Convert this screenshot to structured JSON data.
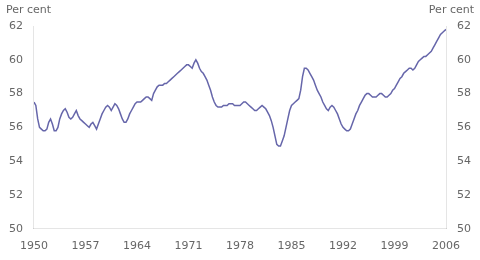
{
  "chart_data": {
    "type": "line",
    "ylabel": "Per cent",
    "y2label": "Per cent",
    "color": "#6666aa",
    "grid": false,
    "xlim": [
      1950,
      2006
    ],
    "xticks": [
      1950,
      1957,
      1964,
      1971,
      1978,
      1985,
      1992,
      1999,
      2006
    ],
    "ylim": [
      50,
      62
    ],
    "yticks": [
      50,
      52,
      54,
      56,
      58,
      60,
      62
    ],
    "y2lim": [
      50,
      62
    ],
    "y2ticks": [
      50,
      52,
      54,
      56,
      58,
      60,
      62
    ],
    "x": [
      1950.0,
      1950.25,
      1950.5,
      1950.75,
      1951.0,
      1951.25,
      1951.5,
      1951.75,
      1952.0,
      1952.25,
      1952.5,
      1952.75,
      1953.0,
      1953.25,
      1953.5,
      1953.75,
      1954.0,
      1954.25,
      1954.5,
      1954.75,
      1955.0,
      1955.25,
      1955.5,
      1955.75,
      1956.0,
      1956.25,
      1956.5,
      1956.75,
      1957.0,
      1957.25,
      1957.5,
      1957.75,
      1958.0,
      1958.25,
      1958.5,
      1958.75,
      1959.0,
      1959.25,
      1959.5,
      1959.75,
      1960.0,
      1960.25,
      1960.5,
      1960.75,
      1961.0,
      1961.25,
      1961.5,
      1961.75,
      1962.0,
      1962.25,
      1962.5,
      1962.75,
      1963.0,
      1963.25,
      1963.5,
      1963.75,
      1964.0,
      1964.25,
      1964.5,
      1964.75,
      1965.0,
      1965.25,
      1965.5,
      1965.75,
      1966.0,
      1966.25,
      1966.5,
      1966.75,
      1967.0,
      1967.25,
      1967.5,
      1967.75,
      1968.0,
      1968.25,
      1968.5,
      1968.75,
      1969.0,
      1969.25,
      1969.5,
      1969.75,
      1970.0,
      1970.25,
      1970.5,
      1970.75,
      1971.0,
      1971.25,
      1971.5,
      1971.75,
      1972.0,
      1972.25,
      1972.5,
      1972.75,
      1973.0,
      1973.25,
      1973.5,
      1973.75,
      1974.0,
      1974.25,
      1974.5,
      1974.75,
      1975.0,
      1975.25,
      1975.5,
      1975.75,
      1976.0,
      1976.25,
      1976.5,
      1976.75,
      1977.0,
      1977.25,
      1977.5,
      1977.75,
      1978.0,
      1978.25,
      1978.5,
      1978.75,
      1979.0,
      1979.25,
      1979.5,
      1979.75,
      1980.0,
      1980.25,
      1980.5,
      1980.75,
      1981.0,
      1981.25,
      1981.5,
      1981.75,
      1982.0,
      1982.25,
      1982.5,
      1982.75,
      1983.0,
      1983.25,
      1983.5,
      1983.75,
      1984.0,
      1984.25,
      1984.5,
      1984.75,
      1985.0,
      1985.25,
      1985.5,
      1985.75,
      1986.0,
      1986.25,
      1986.5,
      1986.75,
      1987.0,
      1987.25,
      1987.5,
      1987.75,
      1988.0,
      1988.25,
      1988.5,
      1988.75,
      1989.0,
      1989.25,
      1989.5,
      1989.75,
      1990.0,
      1990.25,
      1990.5,
      1990.75,
      1991.0,
      1991.25,
      1991.5,
      1991.75,
      1992.0,
      1992.25,
      1992.5,
      1992.75,
      1993.0,
      1993.25,
      1993.5,
      1993.75,
      1994.0,
      1994.25,
      1994.5,
      1994.75,
      1995.0,
      1995.25,
      1995.5,
      1995.75,
      1996.0,
      1996.25,
      1996.5,
      1996.75,
      1997.0,
      1997.25,
      1997.5,
      1997.75,
      1998.0,
      1998.25,
      1998.5,
      1998.75,
      1999.0,
      1999.25,
      1999.5,
      1999.75,
      2000.0,
      2000.25,
      2000.5,
      2000.75,
      2001.0,
      2001.25,
      2001.5,
      2001.75,
      2002.0,
      2002.25,
      2002.5,
      2002.75,
      2003.0,
      2003.25,
      2003.5,
      2003.75,
      2004.0,
      2004.25,
      2004.5,
      2004.75,
      2005.0,
      2005.25,
      2005.5,
      2005.75,
      2006.0
    ],
    "values": [
      57.5,
      57.3,
      56.5,
      56.0,
      55.9,
      55.8,
      55.8,
      55.9,
      56.3,
      56.5,
      56.2,
      55.8,
      55.8,
      56.0,
      56.5,
      56.8,
      57.0,
      57.1,
      56.9,
      56.6,
      56.5,
      56.6,
      56.8,
      57.0,
      56.7,
      56.5,
      56.4,
      56.3,
      56.2,
      56.1,
      56.0,
      56.2,
      56.3,
      56.1,
      55.9,
      56.2,
      56.5,
      56.8,
      57.0,
      57.2,
      57.3,
      57.2,
      57.0,
      57.2,
      57.4,
      57.3,
      57.1,
      56.8,
      56.5,
      56.3,
      56.3,
      56.5,
      56.8,
      57.0,
      57.2,
      57.4,
      57.5,
      57.5,
      57.5,
      57.6,
      57.7,
      57.8,
      57.8,
      57.7,
      57.6,
      58.0,
      58.2,
      58.4,
      58.5,
      58.5,
      58.5,
      58.6,
      58.6,
      58.7,
      58.8,
      58.9,
      59.0,
      59.1,
      59.2,
      59.3,
      59.4,
      59.5,
      59.6,
      59.7,
      59.7,
      59.6,
      59.5,
      59.8,
      60.0,
      59.8,
      59.5,
      59.3,
      59.2,
      59.0,
      58.8,
      58.5,
      58.2,
      57.8,
      57.5,
      57.3,
      57.2,
      57.2,
      57.2,
      57.3,
      57.3,
      57.3,
      57.4,
      57.4,
      57.4,
      57.3,
      57.3,
      57.3,
      57.3,
      57.4,
      57.5,
      57.5,
      57.4,
      57.3,
      57.2,
      57.1,
      57.0,
      57.0,
      57.1,
      57.2,
      57.3,
      57.2,
      57.1,
      56.9,
      56.7,
      56.4,
      56.0,
      55.5,
      55.0,
      54.9,
      54.9,
      55.2,
      55.5,
      56.0,
      56.5,
      57.0,
      57.3,
      57.4,
      57.5,
      57.6,
      57.7,
      58.2,
      59.0,
      59.5,
      59.5,
      59.4,
      59.2,
      59.0,
      58.8,
      58.5,
      58.2,
      58.0,
      57.8,
      57.5,
      57.3,
      57.1,
      57.0,
      57.2,
      57.3,
      57.2,
      57.0,
      56.8,
      56.5,
      56.2,
      56.0,
      55.9,
      55.8,
      55.8,
      55.9,
      56.2,
      56.5,
      56.8,
      57.0,
      57.3,
      57.5,
      57.7,
      57.9,
      58.0,
      58.0,
      57.9,
      57.8,
      57.8,
      57.8,
      57.9,
      58.0,
      58.0,
      57.9,
      57.8,
      57.8,
      57.9,
      58.0,
      58.2,
      58.3,
      58.5,
      58.7,
      58.9,
      59.0,
      59.2,
      59.3,
      59.4,
      59.5,
      59.5,
      59.4,
      59.5,
      59.7,
      59.9,
      60.0,
      60.1,
      60.2,
      60.2,
      60.3,
      60.4,
      60.5,
      60.7,
      60.9,
      61.1,
      61.3,
      61.5,
      61.6,
      61.7,
      61.8
    ]
  }
}
